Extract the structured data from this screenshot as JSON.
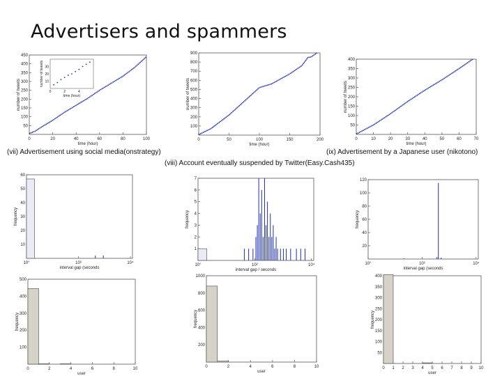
{
  "slide": {
    "title": "Advertisers and spammers"
  },
  "captions": {
    "left": "(vii) Advertisement using social media(onstrategy)",
    "middle": "(viii) Account eventually suspended by Twitter(Easy.Cash435)",
    "right": "(ix) Advertisement by a Japanese  user (nikotono)"
  },
  "chart_data": [
    {
      "id": "c1",
      "type": "line",
      "xlabel": "time (hour)",
      "ylabel": "number of tweets",
      "xlim": [
        0,
        100
      ],
      "ylim": [
        0,
        450
      ],
      "xticks": [
        0,
        20,
        40,
        60,
        80,
        100
      ],
      "yticks": [
        50,
        100,
        150,
        200,
        250,
        300,
        350,
        400,
        450
      ],
      "series": [
        {
          "x": [
            0,
            5,
            10,
            20,
            30,
            40,
            50,
            60,
            70,
            80,
            90,
            100
          ],
          "y": [
            5,
            18,
            40,
            80,
            125,
            165,
            205,
            250,
            290,
            330,
            380,
            440
          ]
        }
      ],
      "inset": {
        "type": "scatter",
        "xlabel": "time (hour)",
        "ylabel": "number of tweets",
        "xlim": [
          0,
          6
        ],
        "ylim": [
          0,
          40
        ],
        "xticks": [
          0,
          2,
          4
        ],
        "yticks": [
          10,
          20,
          30
        ],
        "x": [
          0.5,
          1,
          1.5,
          2,
          2.5,
          3,
          3.5,
          4,
          4.5,
          5,
          5.5
        ],
        "y": [
          5,
          8,
          12,
          15,
          18,
          20,
          23,
          26,
          30,
          33,
          36
        ]
      }
    },
    {
      "id": "c2",
      "type": "line",
      "xlabel": "time (hour)",
      "ylabel": "number of tweets",
      "xlim": [
        0,
        200
      ],
      "ylim": [
        0,
        900
      ],
      "xticks": [
        0,
        50,
        100,
        150,
        200
      ],
      "yticks": [
        100,
        200,
        300,
        400,
        500,
        600,
        700,
        800,
        900
      ],
      "series": [
        {
          "x": [
            0,
            20,
            50,
            75,
            100,
            120,
            150,
            170,
            180,
            185,
            195
          ],
          "y": [
            5,
            70,
            220,
            370,
            520,
            560,
            670,
            760,
            850,
            855,
            900
          ]
        }
      ]
    },
    {
      "id": "c3",
      "type": "line",
      "xlabel": "time (hour)",
      "ylabel": "number of tweets",
      "xlim": [
        0,
        70
      ],
      "ylim": [
        0,
        400
      ],
      "xticks": [
        0,
        10,
        20,
        30,
        40,
        50,
        60,
        70
      ],
      "yticks": [
        50,
        100,
        150,
        200,
        250,
        300,
        350,
        400
      ],
      "series": [
        {
          "x": [
            0,
            10,
            20,
            30,
            40,
            50,
            60,
            68
          ],
          "y": [
            2,
            50,
            110,
            175,
            235,
            290,
            350,
            400
          ]
        }
      ]
    },
    {
      "id": "c4",
      "type": "bar",
      "xlabel": "interval gap (seconds",
      "ylabel": "frequency",
      "xlim": [
        0,
        4
      ],
      "ylim": [
        0,
        60
      ],
      "xticks": [
        "10°",
        "10²",
        "10⁴"
      ],
      "yticks": [
        10,
        20,
        30,
        40,
        50,
        60
      ],
      "bars": [
        {
          "x0": 0,
          "x1": 0.3,
          "value": 57
        }
      ],
      "spikes": [
        {
          "x": 2.6,
          "value": 2
        },
        {
          "x": 2.9,
          "value": 2
        }
      ]
    },
    {
      "id": "c5",
      "type": "bar",
      "xlabel": "interval gap / seconds",
      "ylabel": "frequency",
      "xlim": [
        0,
        4
      ],
      "ylim": [
        0,
        7
      ],
      "xticks": [
        "10°",
        "10²",
        "10⁴"
      ],
      "yticks": [
        1,
        2,
        3,
        4,
        5,
        6,
        7
      ],
      "bars": [
        {
          "x0": 0,
          "x1": 0.3,
          "value": 1
        }
      ],
      "spikes": [
        {
          "x": 1.6,
          "value": 1
        },
        {
          "x": 1.75,
          "value": 1
        },
        {
          "x": 1.9,
          "value": 1
        },
        {
          "x": 2.0,
          "value": 2
        },
        {
          "x": 2.05,
          "value": 3
        },
        {
          "x": 2.1,
          "value": 7
        },
        {
          "x": 2.15,
          "value": 4
        },
        {
          "x": 2.2,
          "value": 6
        },
        {
          "x": 2.25,
          "value": 2
        },
        {
          "x": 2.3,
          "value": 7
        },
        {
          "x": 2.35,
          "value": 3
        },
        {
          "x": 2.4,
          "value": 5
        },
        {
          "x": 2.45,
          "value": 2
        },
        {
          "x": 2.5,
          "value": 4
        },
        {
          "x": 2.55,
          "value": 2
        },
        {
          "x": 2.6,
          "value": 3
        },
        {
          "x": 2.65,
          "value": 1
        },
        {
          "x": 2.7,
          "value": 2
        },
        {
          "x": 2.75,
          "value": 1
        },
        {
          "x": 2.85,
          "value": 1
        },
        {
          "x": 2.95,
          "value": 1
        },
        {
          "x": 3.05,
          "value": 1
        },
        {
          "x": 3.2,
          "value": 1
        },
        {
          "x": 3.4,
          "value": 1
        },
        {
          "x": 3.55,
          "value": 1
        },
        {
          "x": 3.7,
          "value": 1
        }
      ]
    },
    {
      "id": "c6",
      "type": "bar",
      "xlabel": "interval gap (seconds",
      "ylabel": "frequency",
      "xlim": [
        0,
        4
      ],
      "ylim": [
        0,
        120
      ],
      "xticks": [
        "10°",
        "10²",
        "10⁴"
      ],
      "yticks": [
        20,
        40,
        60,
        80,
        100,
        120
      ],
      "bars": [],
      "spikes": [
        {
          "x": 2.55,
          "value": 115
        },
        {
          "x": 2.5,
          "value": 3
        },
        {
          "x": 2.65,
          "value": 2
        },
        {
          "x": 1.3,
          "value": 1
        }
      ]
    },
    {
      "id": "c7",
      "type": "bar",
      "xlabel": "user",
      "ylabel": "frequency",
      "xlim": [
        0,
        10
      ],
      "ylim": [
        0,
        500
      ],
      "xticks": [
        0,
        2,
        4,
        6,
        8,
        10
      ],
      "yticks": [
        100,
        200,
        300,
        400,
        500
      ],
      "bars": [
        {
          "x0": 0,
          "x1": 1,
          "value": 445
        },
        {
          "x0": 1,
          "x1": 2,
          "value": 2
        },
        {
          "x0": 3,
          "x1": 4,
          "value": 2
        }
      ]
    },
    {
      "id": "c8",
      "type": "bar",
      "xlabel": "user",
      "ylabel": "frequency",
      "xlim": [
        0,
        10
      ],
      "ylim": [
        0,
        1000
      ],
      "xticks": [
        0,
        2,
        4,
        6,
        8,
        10
      ],
      "yticks": [
        200,
        400,
        600,
        800,
        1000
      ],
      "bars": [
        {
          "x0": 0,
          "x1": 1,
          "value": 880
        },
        {
          "x0": 1,
          "x1": 2,
          "value": 12
        }
      ]
    },
    {
      "id": "c9",
      "type": "bar",
      "xlabel": "user",
      "ylabel": "frequency",
      "xlim": [
        0,
        10
      ],
      "ylim": [
        0,
        400
      ],
      "xticks": [
        0,
        1,
        2,
        3,
        4,
        5,
        6,
        7,
        8,
        9,
        10
      ],
      "yticks": [
        50,
        100,
        150,
        200,
        250,
        300,
        350,
        400
      ],
      "bars": [
        {
          "x0": 0,
          "x1": 1,
          "value": 405
        },
        {
          "x0": 4,
          "x1": 5,
          "value": 3
        }
      ]
    }
  ]
}
